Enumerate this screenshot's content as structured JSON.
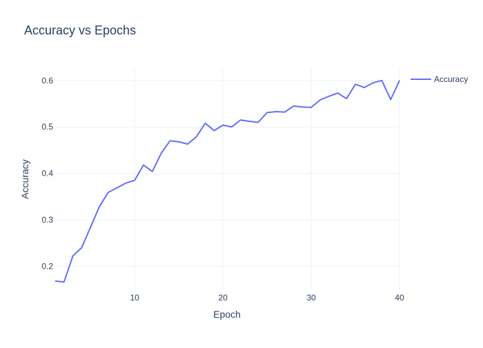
{
  "chart_data": {
    "type": "line",
    "title": "Accuracy vs Epochs",
    "xlabel": "Epoch",
    "ylabel": "Accuracy",
    "xlim": [
      1,
      40
    ],
    "ylim": [
      0.15,
      0.625
    ],
    "x_ticks": [
      10,
      20,
      30,
      40
    ],
    "y_ticks": [
      0.2,
      0.3,
      0.4,
      0.5,
      0.6
    ],
    "grid": true,
    "legend_position": "top-right",
    "series": [
      {
        "name": "Accuracy",
        "color": "#636efa",
        "x": [
          1,
          2,
          3,
          4,
          5,
          6,
          7,
          8,
          9,
          10,
          11,
          12,
          13,
          14,
          15,
          16,
          17,
          18,
          19,
          20,
          21,
          22,
          23,
          24,
          25,
          26,
          27,
          28,
          29,
          30,
          31,
          32,
          33,
          34,
          35,
          36,
          37,
          38,
          39,
          40
        ],
        "y": [
          0.168,
          0.166,
          0.222,
          0.24,
          0.284,
          0.328,
          0.359,
          0.369,
          0.379,
          0.385,
          0.418,
          0.404,
          0.443,
          0.47,
          0.468,
          0.463,
          0.479,
          0.508,
          0.492,
          0.504,
          0.5,
          0.515,
          0.512,
          0.51,
          0.531,
          0.533,
          0.532,
          0.545,
          0.543,
          0.542,
          0.558,
          0.566,
          0.573,
          0.561,
          0.592,
          0.585,
          0.595,
          0.6,
          0.559,
          0.6
        ]
      }
    ]
  }
}
